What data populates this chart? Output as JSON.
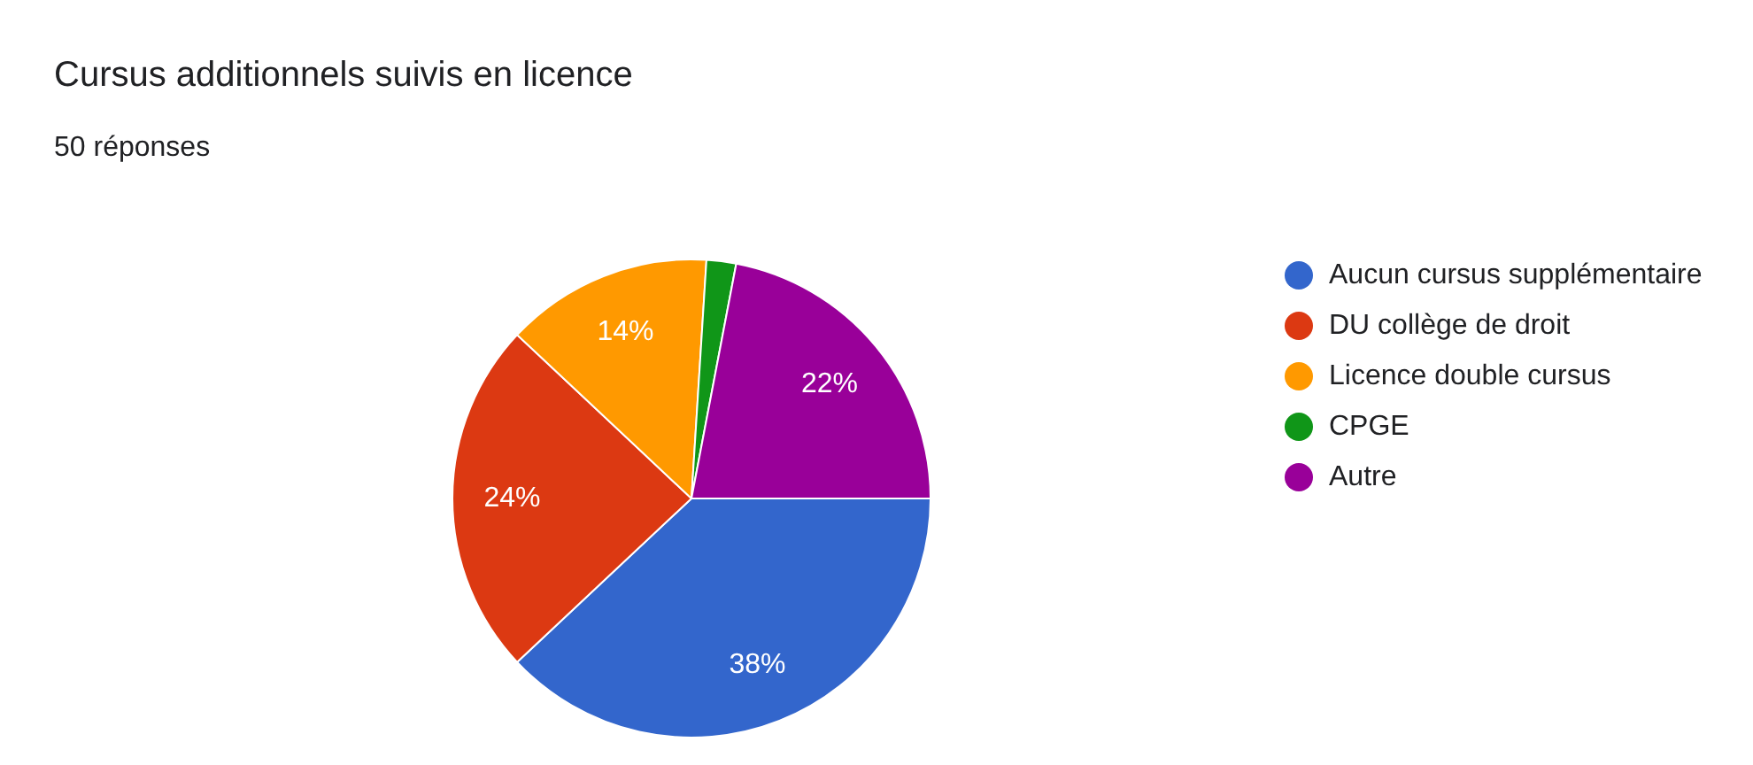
{
  "chart_data": {
    "type": "pie",
    "title": "Cursus additionnels suivis en licence",
    "subtitle": "50 réponses",
    "categories": [
      "Aucun cursus supplémentaire",
      "DU collège de droit",
      "Licence double cursus",
      "CPGE",
      "Autre"
    ],
    "values": [
      38,
      24,
      14,
      2,
      22
    ],
    "colors": [
      "#3366cc",
      "#dc3912",
      "#ff9900",
      "#109618",
      "#990099"
    ],
    "value_labels": [
      "38%",
      "24%",
      "14%",
      null,
      "22%"
    ],
    "legend": "right"
  }
}
